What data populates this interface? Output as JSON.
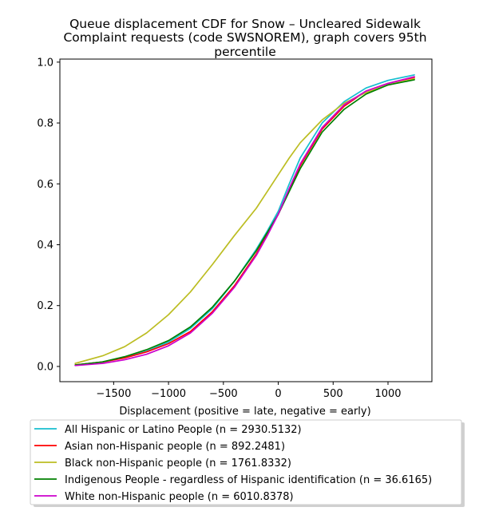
{
  "chart_data": {
    "type": "line",
    "title_lines": [
      "Queue displacement CDF for Snow – Uncleared Sidewalk",
      "Complaint  requests (code SWSNOREM), graph covers 95th",
      "percentile"
    ],
    "xlabel": "Displacement (positive = late, negative = early)",
    "ylabel": "",
    "xlim": [
      -1990,
      1400
    ],
    "ylim": [
      -0.05,
      1.01
    ],
    "xticks": [
      -1500,
      -1000,
      -500,
      0,
      500,
      1000
    ],
    "xtick_labels": [
      "−1500",
      "−1000",
      "−500",
      "0",
      "500",
      "1000"
    ],
    "yticks": [
      0.0,
      0.2,
      0.4,
      0.6,
      0.8,
      1.0
    ],
    "ytick_labels": [
      "0.0",
      "0.2",
      "0.4",
      "0.6",
      "0.8",
      "1.0"
    ],
    "grid": false,
    "legend_position": "below",
    "x": [
      -1850,
      -1600,
      -1400,
      -1200,
      -1000,
      -800,
      -600,
      -400,
      -200,
      -100,
      0,
      100,
      200,
      400,
      600,
      800,
      1000,
      1240
    ],
    "series": [
      {
        "name": "All Hispanic or Latino People (n = 2930.5132)",
        "color": "#17becf",
        "values": [
          0.005,
          0.015,
          0.03,
          0.05,
          0.08,
          0.125,
          0.19,
          0.28,
          0.385,
          0.445,
          0.51,
          0.6,
          0.685,
          0.8,
          0.87,
          0.915,
          0.94,
          0.958
        ]
      },
      {
        "name": "Asian non-Hispanic people (n = 892.2481)",
        "color": "#ff0000",
        "values": [
          0.005,
          0.015,
          0.028,
          0.048,
          0.075,
          0.115,
          0.18,
          0.265,
          0.37,
          0.435,
          0.5,
          0.58,
          0.66,
          0.78,
          0.855,
          0.905,
          0.93,
          0.95
        ]
      },
      {
        "name": "Black non-Hispanic people (n = 1761.8332)",
        "color": "#bcbd22",
        "values": [
          0.01,
          0.035,
          0.065,
          0.11,
          0.17,
          0.245,
          0.335,
          0.43,
          0.52,
          0.575,
          0.63,
          0.685,
          0.735,
          0.81,
          0.865,
          0.9,
          0.925,
          0.945
        ]
      },
      {
        "name": "Indigenous People - regardless of Hispanic identification (n = 36.6165)",
        "color": "#008000",
        "values": [
          0.005,
          0.015,
          0.032,
          0.055,
          0.085,
          0.13,
          0.195,
          0.28,
          0.38,
          0.44,
          0.5,
          0.575,
          0.65,
          0.77,
          0.845,
          0.895,
          0.925,
          0.942
        ]
      },
      {
        "name": "White non-Hispanic people (n = 6010.8378)",
        "color": "#cc00cc",
        "values": [
          0.003,
          0.01,
          0.022,
          0.04,
          0.068,
          0.11,
          0.175,
          0.26,
          0.365,
          0.43,
          0.5,
          0.585,
          0.665,
          0.785,
          0.86,
          0.905,
          0.93,
          0.952
        ]
      }
    ]
  }
}
